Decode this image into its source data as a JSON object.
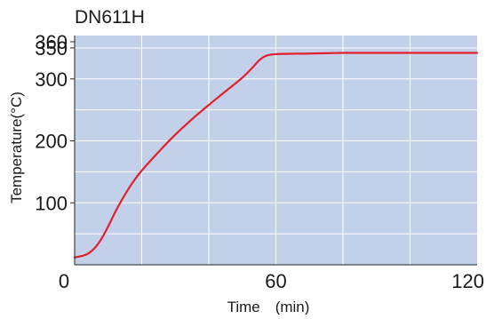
{
  "colors": {
    "plot_background": "#c3d0ea",
    "grid": "#ffffff",
    "line": "#e2202a",
    "axis": "#222222",
    "text": "#1a1a1a"
  },
  "chart_data": {
    "type": "line",
    "title": "DN611H",
    "xlabel": "Time　(min)",
    "ylabel": "Temperature(°C)",
    "xlim": [
      0,
      120
    ],
    "ylim": [
      0,
      370
    ],
    "grid": true,
    "x_ticks": [
      {
        "value": 0,
        "label": "0"
      },
      {
        "value": 60,
        "label": "60"
      },
      {
        "value": 120,
        "label": "120"
      }
    ],
    "x_grid": [
      20,
      40,
      60,
      80,
      100
    ],
    "y_ticks": [
      {
        "value": 100,
        "label": "100"
      },
      {
        "value": 200,
        "label": "200"
      },
      {
        "value": 300,
        "label": "300"
      },
      {
        "value": 350,
        "label": "350"
      },
      {
        "value": 360,
        "label": "360"
      }
    ],
    "y_grid": [
      50,
      100,
      150,
      200,
      250,
      300,
      350
    ],
    "series": [
      {
        "x": [
          0,
          2,
          4,
          6,
          8,
          10,
          12,
          14,
          16,
          18,
          20,
          25,
          30,
          35,
          40,
          45,
          50,
          53,
          55,
          57,
          60,
          70,
          80,
          90,
          100,
          110,
          120
        ],
        "y": [
          12,
          14,
          18,
          27,
          42,
          62,
          84,
          104,
          122,
          138,
          152,
          182,
          210,
          235,
          258,
          280,
          302,
          318,
          330,
          337,
          340,
          341,
          342,
          342,
          342,
          342,
          342
        ]
      }
    ]
  }
}
